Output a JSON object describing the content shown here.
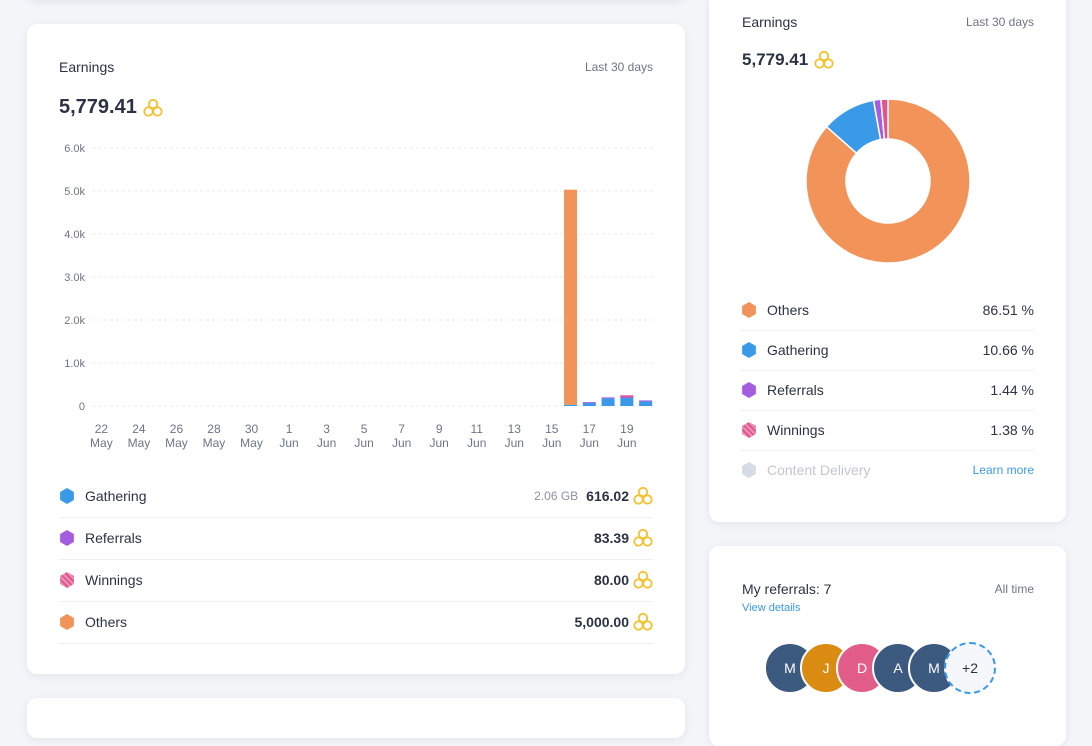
{
  "earnings_card": {
    "title": "Earnings",
    "period": "Last 30 days",
    "total": "5,779.41",
    "legend": [
      {
        "name": "Gathering",
        "extra": "2.06 GB",
        "value": "616.02",
        "color": "#3b9ae8"
      },
      {
        "name": "Referrals",
        "extra": "",
        "value": "83.39",
        "color": "#a45ddf"
      },
      {
        "name": "Winnings",
        "extra": "",
        "value": "80.00",
        "color": "#e0568f"
      },
      {
        "name": "Others",
        "extra": "",
        "value": "5,000.00",
        "color": "#f2935a"
      }
    ]
  },
  "chart_data": {
    "type": "bar",
    "stacked": true,
    "ylim": [
      0,
      6000
    ],
    "yticks": [
      "6.0k",
      "5.0k",
      "4.0k",
      "3.0k",
      "2.0k",
      "1.0k",
      "0"
    ],
    "ytick_values": [
      6000,
      5000,
      4000,
      3000,
      2000,
      1000,
      0
    ],
    "x_labels": [
      {
        "day": "22",
        "month": "May"
      },
      {
        "day": "24",
        "month": "May"
      },
      {
        "day": "26",
        "month": "May"
      },
      {
        "day": "28",
        "month": "May"
      },
      {
        "day": "30",
        "month": "May"
      },
      {
        "day": "1",
        "month": "Jun"
      },
      {
        "day": "3",
        "month": "Jun"
      },
      {
        "day": "5",
        "month": "Jun"
      },
      {
        "day": "7",
        "month": "Jun"
      },
      {
        "day": "9",
        "month": "Jun"
      },
      {
        "day": "11",
        "month": "Jun"
      },
      {
        "day": "13",
        "month": "Jun"
      },
      {
        "day": "15",
        "month": "Jun"
      },
      {
        "day": "17",
        "month": "Jun"
      },
      {
        "day": "19",
        "month": "Jun"
      }
    ],
    "bars": [
      {
        "date": "16 Jun",
        "gathering": 30,
        "referrals": 0,
        "winnings": 0,
        "others": 5000
      },
      {
        "date": "17 Jun",
        "gathering": 80,
        "referrals": 10,
        "winnings": 0,
        "others": 0
      },
      {
        "date": "18 Jun",
        "gathering": 180,
        "referrals": 20,
        "winnings": 0,
        "others": 0
      },
      {
        "date": "19 Jun",
        "gathering": 190,
        "referrals": 20,
        "winnings": 40,
        "others": 0
      },
      {
        "date": "20 Jun",
        "gathering": 110,
        "referrals": 20,
        "winnings": 0,
        "others": 0
      }
    ],
    "colors": {
      "gathering": "#3b9ae8",
      "referrals": "#a45ddf",
      "winnings": "#e0568f",
      "others": "#f2935a"
    },
    "grid": true
  },
  "side_card": {
    "title": "Earnings",
    "period": "Last 30 days",
    "total": "5,779.41",
    "donut": [
      {
        "name": "Others",
        "pct": 86.51,
        "label": "86.51 %",
        "color": "#f2935a"
      },
      {
        "name": "Gathering",
        "pct": 10.66,
        "label": "10.66 %",
        "color": "#3b9ae8"
      },
      {
        "name": "Referrals",
        "pct": 1.44,
        "label": "1.44 %",
        "color": "#a45ddf"
      },
      {
        "name": "Winnings",
        "pct": 1.38,
        "label": "1.38 %",
        "color": "#e0568f"
      }
    ],
    "content_delivery": "Content Delivery",
    "learn_more": "Learn more"
  },
  "referrals_card": {
    "title": "My referrals: 7",
    "view_details": "View details",
    "period": "All time",
    "avatars": [
      {
        "letter": "M",
        "color": "#3c5a80"
      },
      {
        "letter": "J",
        "color": "#d98b12"
      },
      {
        "letter": "D",
        "color": "#e35d8a"
      },
      {
        "letter": "A",
        "color": "#3c5a80"
      },
      {
        "letter": "M",
        "color": "#3c5a80"
      }
    ],
    "more": "+2"
  }
}
